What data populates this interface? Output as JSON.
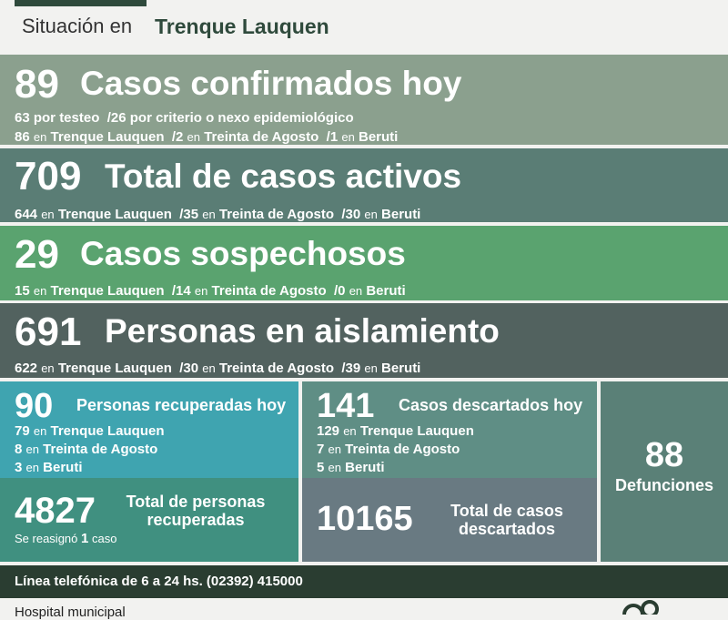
{
  "header": {
    "prefix": "Situación en",
    "city": "Trenque Lauquen"
  },
  "confirmed": {
    "number": "89",
    "title": "Casos confirmados hoy",
    "line1": {
      "a": "63",
      "a_label": "por testeo",
      "b": "/26",
      "b_label": "por criterio o nexo epidemiológico"
    },
    "line2": {
      "n1": "86",
      "p1": "Trenque Lauquen",
      "n2": "/2",
      "p2": "Treinta de Agosto",
      "n3": "/1",
      "p3": "Beruti"
    }
  },
  "active": {
    "number": "709",
    "title": "Total de casos activos",
    "line": {
      "n1": "644",
      "p1": "Trenque Lauquen",
      "n2": "/35",
      "p2": "Treinta de Agosto",
      "n3": "/30",
      "p3": "Beruti"
    }
  },
  "suspected": {
    "number": "29",
    "title": "Casos sospechosos",
    "line": {
      "n1": "15",
      "p1": "Trenque Lauquen",
      "n2": "/14",
      "p2": "Treinta de Agosto",
      "n3": "/0",
      "p3": "Beruti"
    }
  },
  "isolation": {
    "number": "691",
    "title": "Personas en aislamiento",
    "line": {
      "n1": "622",
      "p1": "Trenque Lauquen",
      "n2": "/30",
      "p2": "Treinta de Agosto",
      "n3": "/39",
      "p3": "Beruti"
    }
  },
  "en": "en",
  "recovered_today": {
    "number": "90",
    "title": "Personas recuperadas hoy",
    "rows": [
      {
        "n": "79",
        "p": "Trenque Lauquen"
      },
      {
        "n": "8",
        "p": "Treinta de Agosto"
      },
      {
        "n": "3",
        "p": "Beruti"
      }
    ]
  },
  "recovered_total": {
    "number": "4827",
    "title1": "Total de personas",
    "title2": "recuperadas",
    "note_a": "Se reasignó",
    "note_n": "1",
    "note_b": "caso"
  },
  "discarded_today": {
    "number": "141",
    "title": "Casos descartados hoy",
    "rows": [
      {
        "n": "129",
        "p": "Trenque Lauquen"
      },
      {
        "n": "7",
        "p": "Treinta de Agosto"
      },
      {
        "n": "5",
        "p": "Beruti"
      }
    ]
  },
  "discarded_total": {
    "number": "10165",
    "title1": "Total de casos",
    "title2": "descartados"
  },
  "deaths": {
    "number": "88",
    "title": "Defunciones"
  },
  "phone": "Línea telefónica de 6 a 24 hs. (02392) 415000",
  "footer": "Hospital municipal"
}
